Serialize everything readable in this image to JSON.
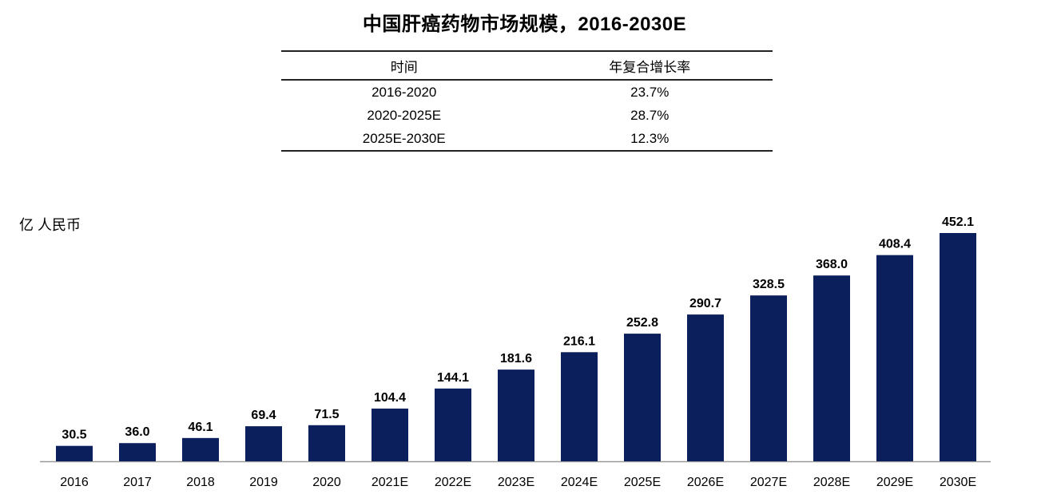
{
  "title": "中国肝癌药物市场规模，2016-2030E",
  "cagr_table": {
    "headers": [
      "时间",
      "年复合增长率"
    ],
    "rows": [
      [
        "2016-2020",
        "23.7%"
      ],
      [
        "2020-2025E",
        "28.7%"
      ],
      [
        "2025E-2030E",
        "12.3%"
      ]
    ]
  },
  "chart_data": {
    "type": "bar",
    "title": "中国肝癌药物市场规模，2016-2030E",
    "ylabel": "亿 人民币",
    "xlabel": "",
    "categories": [
      "2016",
      "2017",
      "2018",
      "2019",
      "2020",
      "2021E",
      "2022E",
      "2023E",
      "2024E",
      "2025E",
      "2026E",
      "2027E",
      "2028E",
      "2029E",
      "2030E"
    ],
    "values": [
      30.5,
      36.0,
      46.1,
      69.4,
      71.5,
      104.4,
      144.1,
      181.6,
      216.1,
      252.8,
      290.7,
      328.5,
      368.0,
      408.4,
      452.1
    ],
    "value_labels": [
      "30.5",
      "36.0",
      "46.1",
      "69.4",
      "71.5",
      "104.4",
      "144.1",
      "181.6",
      "216.1",
      "252.8",
      "290.7",
      "328.5",
      "368.0",
      "408.4",
      "452.1"
    ],
    "ylim": [
      0,
      452.1
    ],
    "grid": false,
    "bar_color": "#0b1f5c"
  }
}
